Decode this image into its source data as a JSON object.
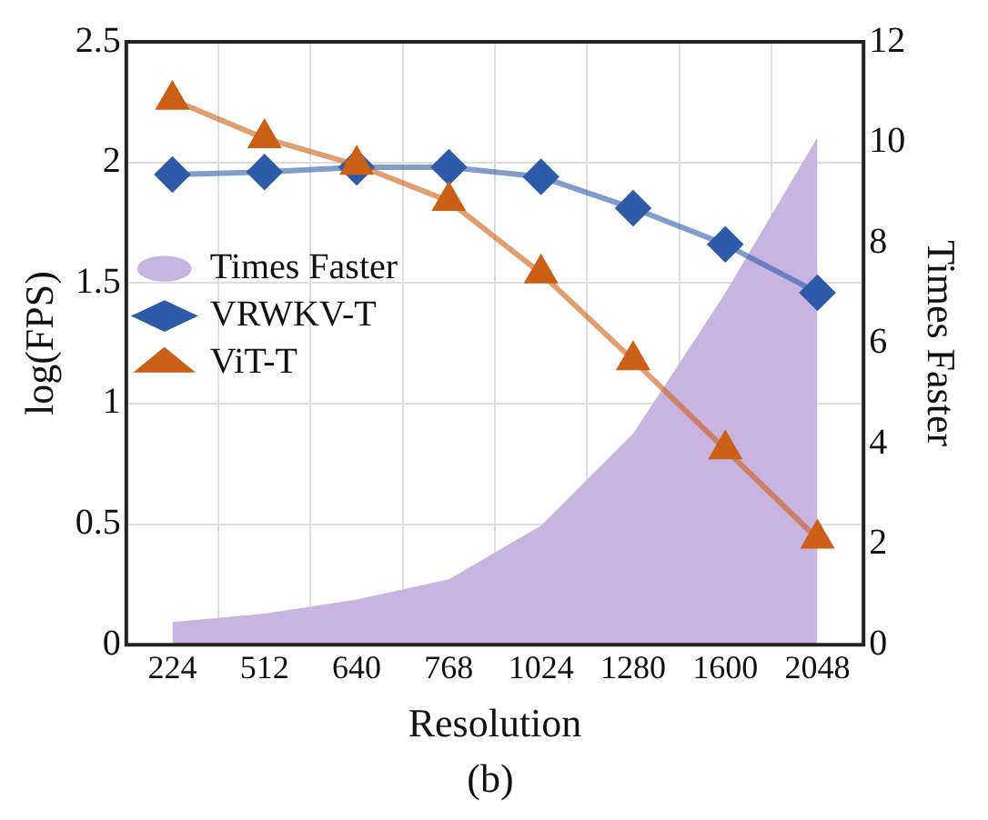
{
  "chart_data": {
    "type": "line",
    "title": "(b)",
    "xlabel": "Resolution",
    "ylabel": "log(FPS)",
    "y2label": "Times Faster",
    "categories": [
      "224",
      "512",
      "640",
      "768",
      "1024",
      "1280",
      "1600",
      "2048"
    ],
    "series": [
      {
        "name": "Times Faster",
        "type": "area",
        "axis": "y2",
        "color": "#c8b4e0",
        "marker": "none",
        "values": [
          0.45,
          0.62,
          0.9,
          1.3,
          2.37,
          4.2,
          7.0,
          10.1
        ]
      },
      {
        "name": "VRWKV-T",
        "color": "#2e5aa8",
        "marker": "diamond",
        "values": [
          1.95,
          1.96,
          1.98,
          1.98,
          1.94,
          1.81,
          1.66,
          1.46
        ]
      },
      {
        "name": "ViT-T",
        "color": "#cc5f16",
        "marker": "triangle",
        "values": [
          2.26,
          2.1,
          1.99,
          1.84,
          1.54,
          1.18,
          0.81,
          0.44
        ]
      }
    ],
    "ylim": [
      0,
      2.5
    ],
    "yticks": [
      0,
      0.5,
      1,
      1.5,
      2,
      2.5
    ],
    "y2lim": [
      0,
      12
    ],
    "y2ticks": [
      0,
      2,
      4,
      6,
      8,
      10,
      12
    ],
    "grid": true,
    "legend": "left"
  }
}
